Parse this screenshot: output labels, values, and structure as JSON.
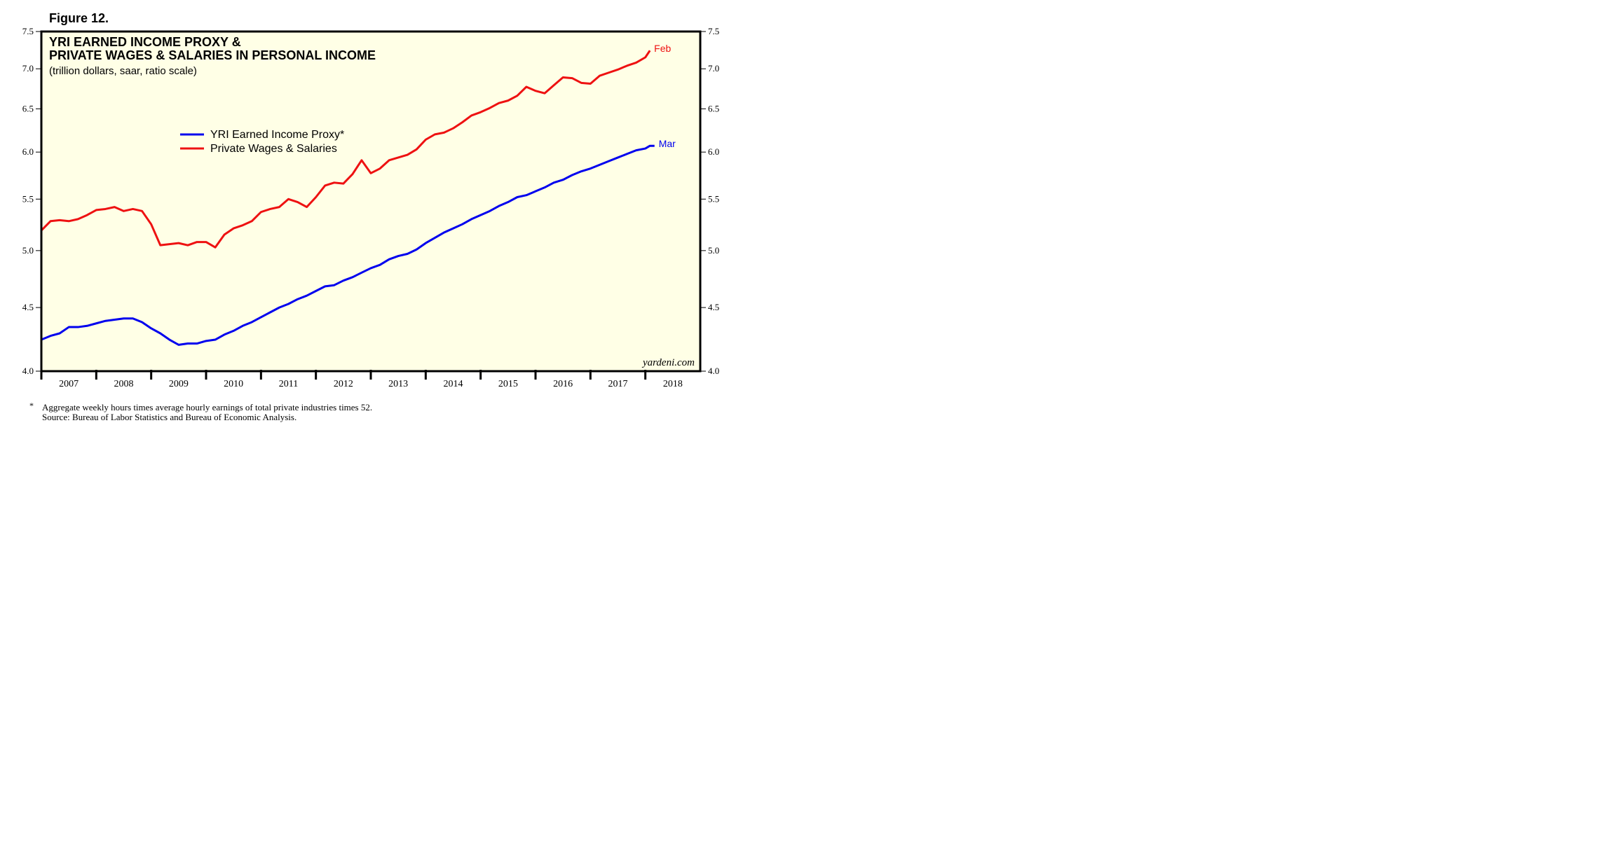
{
  "chart_data": {
    "type": "line",
    "figure_label": "Figure 12.",
    "title": [
      "YRI EARNED INCOME PROXY &",
      "PRIVATE WAGES & SALARIES IN PERSONAL INCOME"
    ],
    "subtitle": "(trillion dollars, saar, ratio scale)",
    "source_tag": "yardeni.com",
    "footnote_marker": "*",
    "footnotes": [
      "Aggregate weekly hours times average hourly earnings of total private industries times 52.",
      "Source: Bureau of Labor Statistics and Bureau of Economic Analysis."
    ],
    "yscale": "log",
    "ylim": [
      4,
      7.5
    ],
    "yticks": [
      {
        "value": 4,
        "label": "4.0"
      },
      {
        "value": 4.5,
        "label": "4.5"
      },
      {
        "value": 5,
        "label": "5.0"
      },
      {
        "value": 5.5,
        "label": "5.5"
      },
      {
        "value": 6,
        "label": "6.0"
      },
      {
        "value": 6.5,
        "label": "6.5"
      },
      {
        "value": 7,
        "label": "7.0"
      },
      {
        "value": 7.5,
        "label": "7.5"
      }
    ],
    "xlim": [
      2007,
      2019
    ],
    "xticks": [
      2007,
      2008,
      2009,
      2010,
      2011,
      2012,
      2013,
      2014,
      2015,
      2016,
      2017,
      2018
    ],
    "legend": "upper left",
    "background": "#ffffe6",
    "x": [
      2007,
      2007.167,
      2007.333,
      2007.5,
      2007.667,
      2007.833,
      2008,
      2008.167,
      2008.333,
      2008.5,
      2008.667,
      2008.833,
      2009,
      2009.167,
      2009.333,
      2009.5,
      2009.667,
      2009.833,
      2010,
      2010.167,
      2010.333,
      2010.5,
      2010.667,
      2010.833,
      2011,
      2011.167,
      2011.333,
      2011.5,
      2011.667,
      2011.833,
      2012,
      2012.167,
      2012.333,
      2012.5,
      2012.667,
      2012.833,
      2013,
      2013.167,
      2013.333,
      2013.5,
      2013.667,
      2013.833,
      2014,
      2014.167,
      2014.333,
      2014.5,
      2014.667,
      2014.833,
      2015,
      2015.167,
      2015.333,
      2015.5,
      2015.667,
      2015.833,
      2016,
      2016.167,
      2016.333,
      2016.5,
      2016.667,
      2016.833,
      2017,
      2017.167,
      2017.333,
      2017.5,
      2017.667,
      2017.833,
      2018,
      2018.083,
      2018.167
    ],
    "series": [
      {
        "name": "YRI Earned Income Proxy*",
        "color": "#0000ee",
        "end_label": "Mar",
        "values": [
          4.24,
          4.27,
          4.29,
          4.34,
          4.34,
          4.35,
          4.37,
          4.39,
          4.4,
          4.41,
          4.41,
          4.38,
          4.33,
          4.29,
          4.24,
          4.2,
          4.21,
          4.21,
          4.23,
          4.24,
          4.28,
          4.31,
          4.35,
          4.38,
          4.42,
          4.46,
          4.5,
          4.53,
          4.57,
          4.6,
          4.64,
          4.68,
          4.69,
          4.73,
          4.76,
          4.8,
          4.84,
          4.87,
          4.92,
          4.95,
          4.97,
          5.01,
          5.07,
          5.12,
          5.17,
          5.21,
          5.25,
          5.3,
          5.34,
          5.38,
          5.43,
          5.47,
          5.52,
          5.54,
          5.58,
          5.62,
          5.67,
          5.7,
          5.75,
          5.79,
          5.82,
          5.86,
          5.9,
          5.94,
          5.98,
          6.02,
          6.04,
          6.07,
          6.07
        ]
      },
      {
        "name": "Private Wages & Salaries",
        "color": "#ee1111",
        "end_label": "Feb",
        "values": [
          5.19,
          5.28,
          5.29,
          5.28,
          5.3,
          5.34,
          5.39,
          5.4,
          5.42,
          5.38,
          5.4,
          5.38,
          5.25,
          5.05,
          5.06,
          5.07,
          5.05,
          5.08,
          5.08,
          5.03,
          5.15,
          5.21,
          5.24,
          5.28,
          5.37,
          5.4,
          5.42,
          5.5,
          5.47,
          5.42,
          5.52,
          5.64,
          5.67,
          5.66,
          5.76,
          5.91,
          5.77,
          5.82,
          5.91,
          5.94,
          5.97,
          6.03,
          6.14,
          6.2,
          6.22,
          6.27,
          6.34,
          6.42,
          6.46,
          6.51,
          6.57,
          6.6,
          6.66,
          6.77,
          6.72,
          6.69,
          6.79,
          6.89,
          6.88,
          6.82,
          6.81,
          6.91,
          6.95,
          6.99,
          7.04,
          7.08,
          7.15,
          7.24,
          null
        ]
      }
    ]
  }
}
